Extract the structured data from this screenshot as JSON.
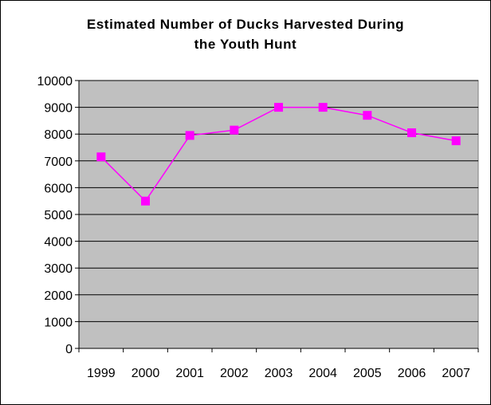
{
  "chart_data": {
    "type": "line",
    "title_lines": [
      "Estimated Number of Ducks Harvested During",
      "the Youth Hunt"
    ],
    "categories": [
      "1999",
      "2000",
      "2001",
      "2002",
      "2003",
      "2004",
      "2005",
      "2006",
      "2007"
    ],
    "series": [
      {
        "values": [
          7150,
          5500,
          7950,
          8150,
          9000,
          9000,
          8700,
          8050,
          7750
        ],
        "color": "#ff00ff",
        "marker": "square"
      }
    ],
    "y_ticks": [
      "0",
      "1000",
      "2000",
      "3000",
      "4000",
      "5000",
      "6000",
      "7000",
      "8000",
      "9000",
      "10000"
    ],
    "ylim": [
      0,
      10000
    ],
    "grid": true,
    "legend": "none",
    "plot_background": "#c0c0c0"
  }
}
